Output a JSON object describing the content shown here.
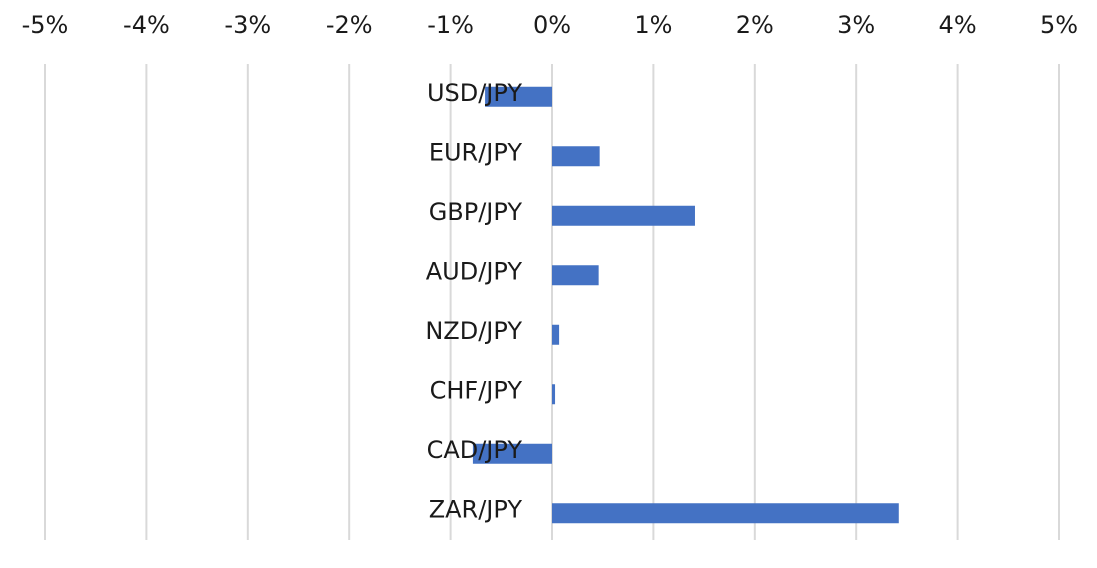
{
  "chart_data": {
    "type": "bar",
    "orientation": "horizontal",
    "categories": [
      "USD/JPY",
      "EUR/JPY",
      "GBP/JPY",
      "AUD/JPY",
      "NZD/JPY",
      "CHF/JPY",
      "CAD/JPY",
      "ZAR/JPY"
    ],
    "values": [
      -0.66,
      0.47,
      1.41,
      0.46,
      0.07,
      0.03,
      -0.78,
      3.42
    ],
    "xlim": [
      -5,
      5
    ],
    "xticks": [
      -5,
      -4,
      -3,
      -2,
      -1,
      0,
      1,
      2,
      3,
      4,
      5
    ],
    "xtick_labels": [
      "-5%",
      "-4%",
      "-3%",
      "-2%",
      "-1%",
      "0%",
      "1%",
      "2%",
      "3%",
      "4%",
      "5%"
    ],
    "x_axis_position": "top",
    "title": "",
    "xlabel": "",
    "ylabel": "",
    "grid": true,
    "legend": "none",
    "bar_color": "#4472C4",
    "grid_color": "#D9D9D9"
  }
}
